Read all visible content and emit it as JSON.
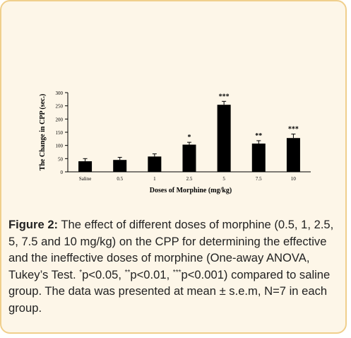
{
  "chart_data": {
    "type": "bar",
    "categories": [
      "Saline",
      "0.5",
      "1",
      "2.5",
      "5",
      "7.5",
      "10"
    ],
    "values": [
      40,
      45,
      58,
      103,
      254,
      107,
      128
    ],
    "errors": [
      10,
      10,
      10,
      9,
      13,
      11,
      15
    ],
    "significance": [
      "",
      "",
      "",
      "*",
      "***",
      "**",
      "***"
    ],
    "xlabel": "Doses of Morphine  (mg/kg)",
    "ylabel": "The Change in CPP (sec.)",
    "ylim": [
      0,
      300
    ],
    "yticks": [
      0,
      50,
      100,
      150,
      200,
      250,
      300
    ],
    "grid": false,
    "bar_color": "#000000"
  },
  "caption": {
    "label": "Figure 2:",
    "text_1": " The effect of different doses of morphine (0.5, 1, 2.5, 5, 7.5 and 10 mg/kg) on the CPP for determining the effective and the ineffective doses of morphine (One-away ANOVA, Tukey’s Test. ",
    "sig1_mark": "*",
    "sig1_text": "p<0.05, ",
    "sig2_mark": "**",
    "sig2_text": "p<0.01, ",
    "sig3_mark": "***",
    "sig3_text": "p<0.001) compared to saline group. The data was presented at mean ± s.e.m, N=7 in each group."
  }
}
